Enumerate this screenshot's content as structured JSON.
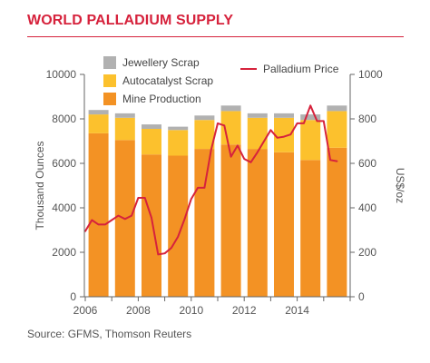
{
  "header": {
    "title": "WORLD PALLADIUM SUPPLY"
  },
  "footer": {
    "source": "Source: GFMS, Thomson Reuters"
  },
  "chart_data": {
    "type": "bar",
    "stacked": true,
    "title": "WORLD PALLADIUM SUPPLY",
    "categories": [
      "2006",
      "2007",
      "2008",
      "2009",
      "2010",
      "2011",
      "2012",
      "2013",
      "2014",
      "2015"
    ],
    "x_tick_labels": [
      "2006",
      "2008",
      "2010",
      "2012",
      "2014"
    ],
    "series": [
      {
        "name": "Mine Production",
        "color": "#f39224",
        "values": [
          7350,
          7050,
          6400,
          6350,
          6650,
          6850,
          6650,
          6500,
          6150,
          6700
        ]
      },
      {
        "name": "Autocatalyst Scrap",
        "color": "#fcc12d",
        "values": [
          850,
          1000,
          1150,
          1150,
          1300,
          1500,
          1400,
          1550,
          1800,
          1650
        ]
      },
      {
        "name": "Jewellery Scrap",
        "color": "#b1b1b1",
        "values": [
          200,
          200,
          200,
          150,
          200,
          250,
          200,
          200,
          250,
          250
        ]
      }
    ],
    "line_series": {
      "name": "Palladium Price",
      "color": "#d6223c",
      "axis": "right",
      "x": [
        2006.0,
        2006.25,
        2006.5,
        2006.75,
        2007.0,
        2007.25,
        2007.5,
        2007.75,
        2008.0,
        2008.25,
        2008.5,
        2008.75,
        2009.0,
        2009.25,
        2009.5,
        2009.75,
        2010.0,
        2010.25,
        2010.5,
        2010.75,
        2011.0,
        2011.25,
        2011.5,
        2011.75,
        2012.0,
        2012.25,
        2012.5,
        2012.75,
        2013.0,
        2013.25,
        2013.5,
        2013.75,
        2014.0,
        2014.25,
        2014.5,
        2014.75,
        2015.0,
        2015.25,
        2015.5
      ],
      "values": [
        295,
        345,
        325,
        325,
        345,
        365,
        350,
        365,
        445,
        445,
        355,
        190,
        195,
        220,
        270,
        350,
        440,
        490,
        490,
        660,
        780,
        770,
        630,
        680,
        620,
        605,
        650,
        700,
        750,
        715,
        720,
        730,
        780,
        780,
        860,
        790,
        790,
        615,
        610
      ]
    },
    "y_left": {
      "label": "Thousand Ounces",
      "range": [
        0,
        10000
      ],
      "ticks": [
        "0",
        "2000",
        "4000",
        "6000",
        "8000",
        "10000"
      ]
    },
    "y_right": {
      "label": "US$/oz",
      "range": [
        0,
        1000
      ],
      "ticks": [
        "0",
        "200",
        "400",
        "600",
        "800",
        "1000"
      ]
    },
    "legend": {
      "placement": "top"
    }
  }
}
